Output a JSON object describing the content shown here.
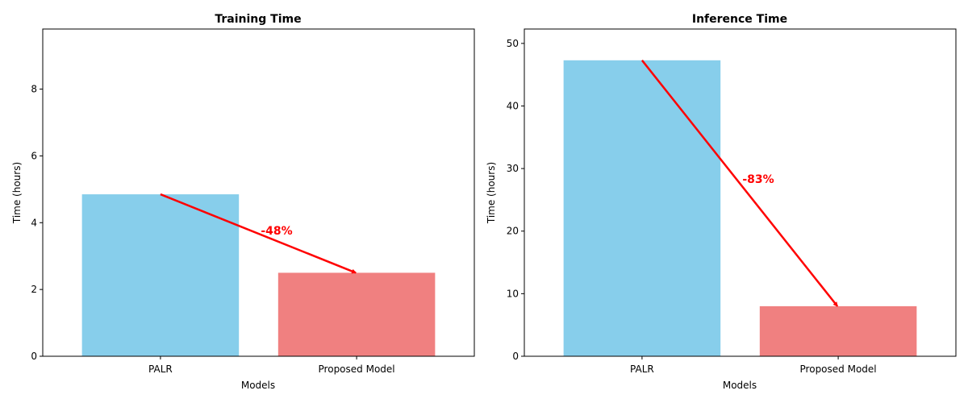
{
  "chart_data": [
    {
      "type": "bar",
      "title": "Training Time",
      "xlabel": "Models",
      "ylabel": "Time (hours)",
      "categories": [
        "PALR",
        "Proposed Model"
      ],
      "values": [
        4.85,
        2.5
      ],
      "colors": [
        "#87CEEB",
        "#F08080"
      ],
      "ylim": [
        0,
        9.8
      ],
      "yticks": [
        0,
        2,
        4,
        6,
        8
      ],
      "annotation": {
        "text": "-48%",
        "color": "#ff0000",
        "arrow": "from PALR bar top to Proposed Model bar top"
      },
      "grid": false
    },
    {
      "type": "bar",
      "title": "Inference Time",
      "xlabel": "Models",
      "ylabel": "Time (hours)",
      "categories": [
        "PALR",
        "Proposed Model"
      ],
      "values": [
        47.3,
        8.0
      ],
      "colors": [
        "#87CEEB",
        "#F08080"
      ],
      "ylim": [
        0,
        52.3
      ],
      "yticks": [
        0,
        10,
        20,
        30,
        40,
        50
      ],
      "annotation": {
        "text": "-83%",
        "color": "#ff0000",
        "arrow": "from PALR bar top to Proposed Model bar top"
      },
      "grid": false
    }
  ]
}
